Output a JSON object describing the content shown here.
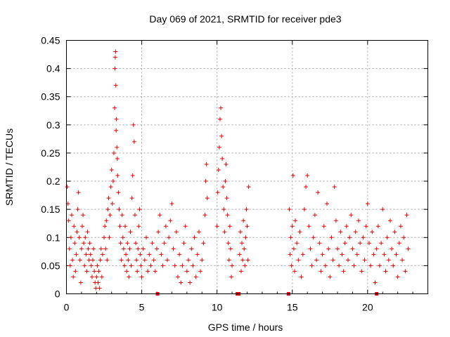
{
  "chart_data": {
    "type": "scatter",
    "title": "Day 069 of 2021, SRMTID for receiver pde3",
    "xlabel": "GPS time / hours",
    "ylabel": "SRMTID / TECUs",
    "xlim": [
      0,
      24
    ],
    "ylim": [
      0,
      0.45
    ],
    "xticks": [
      0,
      5,
      10,
      15,
      20
    ],
    "xtick_labels": [
      "0",
      "5",
      "10",
      "15",
      "20"
    ],
    "yticks": [
      0,
      0.05,
      0.1,
      0.15,
      0.2,
      0.25,
      0.3,
      0.35,
      0.4,
      0.45
    ],
    "ytick_labels": [
      "0",
      "0.05",
      "0.1",
      "0.15",
      "0.2",
      "0.25",
      "0.3",
      "0.35",
      "0.4",
      "0.45"
    ],
    "grid": true,
    "marker": "plus",
    "series_color": "#e00000",
    "series": [
      {
        "name": "SRMTID",
        "points": [
          [
            0.05,
            0.19
          ],
          [
            0.1,
            0.16
          ],
          [
            0.15,
            0.13
          ],
          [
            0.2,
            0.08
          ],
          [
            0.25,
            0.05
          ],
          [
            0.3,
            0.1
          ],
          [
            0.35,
            0.14
          ],
          [
            0.4,
            0.06
          ],
          [
            0.45,
            0.03
          ],
          [
            0.5,
            0.12
          ],
          [
            0.55,
            0.09
          ],
          [
            0.6,
            0.04
          ],
          [
            0.65,
            0.07
          ],
          [
            0.7,
            0.11
          ],
          [
            0.75,
            0.15
          ],
          [
            0.8,
            0.18
          ],
          [
            0.85,
            0.1
          ],
          [
            0.9,
            0.06
          ],
          [
            0.95,
            0.02
          ],
          [
            1.0,
            0.08
          ],
          [
            1.05,
            0.12
          ],
          [
            1.1,
            0.14
          ],
          [
            1.15,
            0.09
          ],
          [
            1.2,
            0.05
          ],
          [
            1.25,
            0.1
          ],
          [
            1.3,
            0.07
          ],
          [
            1.35,
            0.04
          ],
          [
            1.4,
            0.11
          ],
          [
            1.45,
            0.08
          ],
          [
            1.5,
            0.06
          ],
          [
            1.55,
            0.09
          ],
          [
            1.6,
            0.07
          ],
          [
            1.65,
            0.05
          ],
          [
            1.7,
            0.03
          ],
          [
            1.75,
            0.06
          ],
          [
            1.8,
            0.08
          ],
          [
            1.85,
            0.04
          ],
          [
            1.9,
            0.02
          ],
          [
            1.95,
            0.01
          ],
          [
            2.0,
            0.03
          ],
          [
            2.05,
            0.05
          ],
          [
            2.1,
            0.02
          ],
          [
            2.15,
            0.04
          ],
          [
            2.2,
            0.01
          ],
          [
            2.25,
            0.06
          ],
          [
            2.3,
            0.08
          ],
          [
            2.35,
            0.03
          ],
          [
            2.4,
            0.07
          ],
          [
            2.5,
            0.1
          ],
          [
            2.55,
            0.12
          ],
          [
            2.6,
            0.08
          ],
          [
            2.65,
            0.13
          ],
          [
            2.7,
            0.06
          ],
          [
            2.75,
            0.15
          ],
          [
            2.8,
            0.17
          ],
          [
            2.85,
            0.1
          ],
          [
            2.9,
            0.14
          ],
          [
            2.95,
            0.19
          ],
          [
            3.0,
            0.22
          ],
          [
            3.05,
            0.16
          ],
          [
            3.1,
            0.2
          ],
          [
            3.15,
            0.25
          ],
          [
            3.2,
            0.33
          ],
          [
            3.22,
            0.4
          ],
          [
            3.24,
            0.42
          ],
          [
            3.26,
            0.43
          ],
          [
            3.28,
            0.37
          ],
          [
            3.3,
            0.29
          ],
          [
            3.32,
            0.31
          ],
          [
            3.35,
            0.26
          ],
          [
            3.38,
            0.24
          ],
          [
            3.4,
            0.21
          ],
          [
            3.45,
            0.18
          ],
          [
            3.5,
            0.15
          ],
          [
            3.55,
            0.12
          ],
          [
            3.6,
            0.09
          ],
          [
            3.65,
            0.06
          ],
          [
            3.7,
            0.14
          ],
          [
            3.75,
            0.1
          ],
          [
            3.8,
            0.08
          ],
          [
            3.85,
            0.05
          ],
          [
            3.9,
            0.12
          ],
          [
            3.95,
            0.07
          ],
          [
            4.0,
            0.04
          ],
          [
            4.05,
            0.09
          ],
          [
            4.1,
            0.06
          ],
          [
            4.15,
            0.03
          ],
          [
            4.2,
            0.08
          ],
          [
            4.25,
            0.11
          ],
          [
            4.3,
            0.05
          ],
          [
            4.35,
            0.17
          ],
          [
            4.4,
            0.21
          ],
          [
            4.45,
            0.3
          ],
          [
            4.5,
            0.27
          ],
          [
            4.55,
            0.14
          ],
          [
            4.6,
            0.09
          ],
          [
            4.65,
            0.06
          ],
          [
            4.7,
            0.04
          ],
          [
            4.75,
            0.08
          ],
          [
            4.8,
            0.12
          ],
          [
            4.85,
            0.15
          ],
          [
            4.9,
            0.07
          ],
          [
            4.95,
            0.05
          ],
          [
            5.0,
            0.03
          ],
          [
            5.1,
            0.08
          ],
          [
            5.2,
            0.06
          ],
          [
            5.3,
            0.1
          ],
          [
            5.4,
            0.04
          ],
          [
            5.5,
            0.07
          ],
          [
            5.6,
            0.05
          ],
          [
            5.7,
            0.09
          ],
          [
            5.8,
            0.06
          ],
          [
            5.9,
            0.04
          ],
          [
            6.0,
            0.08
          ],
          [
            6.1,
            0.11
          ],
          [
            6.2,
            0.14
          ],
          [
            6.3,
            0.07
          ],
          [
            6.4,
            0.05
          ],
          [
            6.5,
            0.09
          ],
          [
            6.6,
            0.12
          ],
          [
            6.7,
            0.06
          ],
          [
            6.8,
            0.1
          ],
          [
            6.9,
            0.13
          ],
          [
            7.0,
            0.16
          ],
          [
            7.1,
            0.08
          ],
          [
            7.2,
            0.05
          ],
          [
            7.3,
            0.11
          ],
          [
            7.4,
            0.03
          ],
          [
            7.5,
            0.07
          ],
          [
            7.6,
            0.02
          ],
          [
            7.7,
            0.05
          ],
          [
            7.8,
            0.09
          ],
          [
            7.9,
            0.12
          ],
          [
            8.0,
            0.04
          ],
          [
            8.1,
            0.06
          ],
          [
            8.2,
            0.02
          ],
          [
            8.3,
            0.08
          ],
          [
            8.4,
            0.05
          ],
          [
            8.5,
            0.1
          ],
          [
            8.6,
            0.03
          ],
          [
            8.7,
            0.07
          ],
          [
            8.8,
            0.11
          ],
          [
            8.9,
            0.04
          ],
          [
            9.0,
            0.06
          ],
          [
            9.1,
            0.09
          ],
          [
            9.2,
            0.14
          ],
          [
            9.25,
            0.2
          ],
          [
            9.3,
            0.23
          ],
          [
            9.35,
            0.17
          ],
          [
            10.0,
            0.12
          ],
          [
            10.05,
            0.18
          ],
          [
            10.1,
            0.22
          ],
          [
            10.15,
            0.26
          ],
          [
            10.2,
            0.31
          ],
          [
            10.25,
            0.33
          ],
          [
            10.3,
            0.28
          ],
          [
            10.35,
            0.24
          ],
          [
            10.4,
            0.19
          ],
          [
            10.45,
            0.15
          ],
          [
            10.5,
            0.11
          ],
          [
            10.55,
            0.2
          ],
          [
            10.6,
            0.23
          ],
          [
            10.65,
            0.17
          ],
          [
            10.7,
            0.14
          ],
          [
            10.75,
            0.09
          ],
          [
            10.8,
            0.06
          ],
          [
            10.85,
            0.12
          ],
          [
            10.9,
            0.08
          ],
          [
            10.95,
            0.03
          ],
          [
            11.0,
            0.05
          ],
          [
            11.5,
            0.07
          ],
          [
            11.55,
            0.11
          ],
          [
            11.6,
            0.04
          ],
          [
            11.65,
            0.09
          ],
          [
            11.7,
            0.06
          ],
          [
            11.75,
            0.13
          ],
          [
            11.8,
            0.08
          ],
          [
            11.85,
            0.05
          ],
          [
            11.9,
            0.1
          ],
          [
            11.95,
            0.15
          ],
          [
            12.0,
            0.12
          ],
          [
            12.05,
            0.06
          ],
          [
            12.1,
            0.19
          ],
          [
            14.8,
            0.15
          ],
          [
            14.85,
            0.07
          ],
          [
            14.9,
            0.1
          ],
          [
            14.95,
            0.05
          ],
          [
            15.0,
            0.12
          ],
          [
            15.05,
            0.21
          ],
          [
            15.1,
            0.08
          ],
          [
            15.15,
            0.04
          ],
          [
            15.2,
            0.13
          ],
          [
            15.3,
            0.09
          ],
          [
            15.4,
            0.06
          ],
          [
            15.5,
            0.11
          ],
          [
            15.6,
            0.03
          ],
          [
            15.7,
            0.07
          ],
          [
            15.8,
            0.15
          ],
          [
            15.9,
            0.19
          ],
          [
            16.0,
            0.21
          ],
          [
            16.1,
            0.12
          ],
          [
            16.2,
            0.08
          ],
          [
            16.3,
            0.05
          ],
          [
            16.4,
            0.1
          ],
          [
            16.5,
            0.14
          ],
          [
            16.6,
            0.06
          ],
          [
            16.7,
            0.18
          ],
          [
            16.8,
            0.09
          ],
          [
            16.9,
            0.04
          ],
          [
            17.0,
            0.07
          ],
          [
            17.1,
            0.12
          ],
          [
            17.2,
            0.05
          ],
          [
            17.3,
            0.16
          ],
          [
            17.4,
            0.08
          ],
          [
            17.5,
            0.03
          ],
          [
            17.6,
            0.1
          ],
          [
            17.7,
            0.06
          ],
          [
            17.8,
            0.19
          ],
          [
            17.9,
            0.13
          ],
          [
            18.0,
            0.08
          ],
          [
            18.1,
            0.05
          ],
          [
            18.2,
            0.11
          ],
          [
            18.3,
            0.07
          ],
          [
            18.4,
            0.04
          ],
          [
            18.5,
            0.09
          ],
          [
            18.6,
            0.12
          ],
          [
            18.7,
            0.06
          ],
          [
            18.8,
            0.1
          ],
          [
            18.9,
            0.14
          ],
          [
            19.0,
            0.08
          ],
          [
            19.1,
            0.05
          ],
          [
            19.2,
            0.11
          ],
          [
            19.3,
            0.07
          ],
          [
            19.4,
            0.13
          ],
          [
            19.5,
            0.09
          ],
          [
            19.6,
            0.04
          ],
          [
            19.7,
            0.1
          ],
          [
            19.8,
            0.06
          ],
          [
            19.9,
            0.12
          ],
          [
            20.0,
            0.16
          ],
          [
            20.1,
            0.09
          ],
          [
            20.2,
            0.05
          ],
          [
            20.3,
            0.11
          ],
          [
            20.4,
            0.07
          ],
          [
            20.5,
            0.02
          ],
          [
            20.6,
            0.08
          ],
          [
            20.7,
            0.12
          ],
          [
            20.8,
            0.05
          ],
          [
            20.9,
            0.09
          ],
          [
            21.0,
            0.15
          ],
          [
            21.1,
            0.07
          ],
          [
            21.2,
            0.04
          ],
          [
            21.3,
            0.1
          ],
          [
            21.4,
            0.06
          ],
          [
            21.5,
            0.13
          ],
          [
            21.6,
            0.08
          ],
          [
            21.7,
            0.05
          ],
          [
            21.8,
            0.11
          ],
          [
            21.9,
            0.07
          ],
          [
            22.0,
            0.03
          ],
          [
            22.1,
            0.09
          ],
          [
            22.2,
            0.12
          ],
          [
            22.3,
            0.06
          ],
          [
            22.4,
            0.1
          ],
          [
            22.5,
            0.04
          ],
          [
            22.6,
            0.14
          ],
          [
            22.7,
            0.08
          ]
        ],
        "zero_markers": [
          6.05,
          11.35,
          11.45,
          14.75,
          20.6
        ]
      }
    ]
  }
}
